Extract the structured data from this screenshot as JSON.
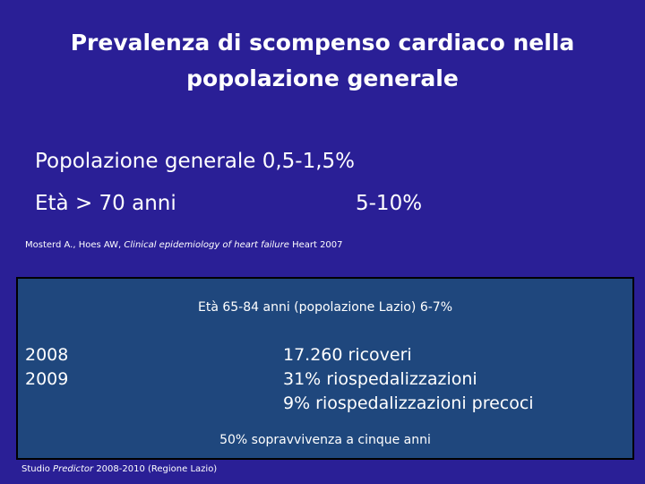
{
  "title": {
    "line1": "Prevalenza di scompenso cardiaco nella",
    "line2": "popolazione generale"
  },
  "stats": {
    "general_population": "Popolazione generale 0,5-1,5%",
    "age_label": "Età > 70 anni",
    "age_value": "5-10%"
  },
  "citation": {
    "authors": "Mosterd A., Hoes AW,",
    "article": "Clinical epidemiology of heart failure",
    "journal": "Heart 2007"
  },
  "lazio_box": {
    "heading": "Età 65-84 anni (popolazione Lazio) 6-7%",
    "years": [
      "2008",
      "2009"
    ],
    "facts": [
      "17.260 ricoveri",
      "31% riospedalizzazioni",
      "9% riospedalizzazioni precoci"
    ],
    "survival": "50% sopravvivenza a cinque anni"
  },
  "study": {
    "prefix": "Studio",
    "name": "Predictor",
    "suffix": "2008-2010 (Regione Lazio)"
  }
}
